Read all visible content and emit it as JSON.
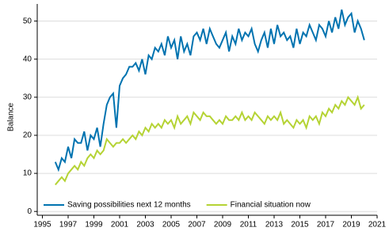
{
  "chart_data": {
    "type": "line",
    "y_label": "Balance",
    "x": [
      1996,
      1996.25,
      1996.5,
      1996.75,
      1997,
      1997.25,
      1997.5,
      1997.75,
      1998,
      1998.25,
      1998.5,
      1998.75,
      1999,
      1999.25,
      1999.5,
      1999.75,
      2000,
      2000.25,
      2000.5,
      2000.75,
      2001,
      2001.25,
      2001.5,
      2001.75,
      2002,
      2002.25,
      2002.5,
      2002.75,
      2003,
      2003.25,
      2003.5,
      2003.75,
      2004,
      2004.25,
      2004.5,
      2004.75,
      2005,
      2005.25,
      2005.5,
      2005.75,
      2006,
      2006.25,
      2006.5,
      2006.75,
      2007,
      2007.25,
      2007.5,
      2007.75,
      2008,
      2008.25,
      2008.5,
      2008.75,
      2009,
      2009.25,
      2009.5,
      2009.75,
      2010,
      2010.25,
      2010.5,
      2010.75,
      2011,
      2011.25,
      2011.5,
      2011.75,
      2012,
      2012.25,
      2012.5,
      2012.75,
      2013,
      2013.25,
      2013.5,
      2013.75,
      2014,
      2014.25,
      2014.5,
      2014.75,
      2015,
      2015.25,
      2015.5,
      2015.75,
      2016,
      2016.25,
      2016.5,
      2016.75,
      2017,
      2017.25,
      2017.5,
      2017.75,
      2018,
      2018.25,
      2018.5,
      2018.75,
      2019,
      2019.25,
      2019.5,
      2019.75,
      2020
    ],
    "series": [
      {
        "name": "Saving possibilities next 12 months",
        "color": "#0073b0",
        "values": [
          13,
          11,
          14,
          13,
          17,
          14,
          19,
          18,
          18,
          21,
          16,
          20,
          19,
          22,
          17,
          23,
          28,
          30,
          31,
          22,
          33,
          35,
          36,
          38,
          38,
          39,
          37,
          40,
          36,
          41,
          40,
          43,
          42,
          44,
          41,
          46,
          43,
          45,
          40,
          46,
          42,
          44,
          41,
          46,
          47,
          45,
          48,
          44,
          48,
          46,
          44,
          43,
          45,
          47,
          42,
          46,
          44,
          48,
          45,
          47,
          46,
          48,
          44,
          42,
          45,
          47,
          43,
          48,
          44,
          49,
          46,
          47,
          45,
          46,
          43,
          48,
          44,
          47,
          46,
          49,
          47,
          45,
          49,
          48,
          46,
          50,
          47,
          51,
          48,
          53,
          49,
          51,
          52,
          47,
          50,
          48,
          45
        ]
      },
      {
        "name": "Financial situation now",
        "color": "#b5d334",
        "values": [
          7,
          8,
          9,
          8,
          10,
          11,
          12,
          11,
          13,
          12,
          14,
          15,
          14,
          16,
          15,
          16,
          19,
          18,
          17,
          18,
          18,
          19,
          18,
          19,
          20,
          19,
          21,
          20,
          22,
          21,
          23,
          22,
          23,
          22,
          24,
          23,
          24,
          22,
          25,
          23,
          24,
          25,
          23,
          26,
          25,
          24,
          26,
          25,
          25,
          24,
          23,
          24,
          23,
          25,
          24,
          24,
          25,
          24,
          26,
          24,
          25,
          24,
          26,
          25,
          24,
          23,
          25,
          24,
          25,
          24,
          26,
          23,
          24,
          23,
          22,
          24,
          23,
          24,
          22,
          25,
          24,
          25,
          23,
          26,
          25,
          27,
          26,
          28,
          27,
          29,
          28,
          30,
          29,
          28,
          30,
          27,
          28
        ]
      }
    ],
    "xlim": [
      1994.6,
      2021
    ],
    "xticks": [
      1995,
      1997,
      1999,
      2001,
      2003,
      2005,
      2007,
      2009,
      2011,
      2013,
      2015,
      2017,
      2019,
      2021
    ],
    "ylim": [
      -1,
      54.5
    ],
    "yticks": [
      0,
      10,
      20,
      30,
      40,
      50
    ],
    "grid": true,
    "legend": "bottom-left"
  }
}
